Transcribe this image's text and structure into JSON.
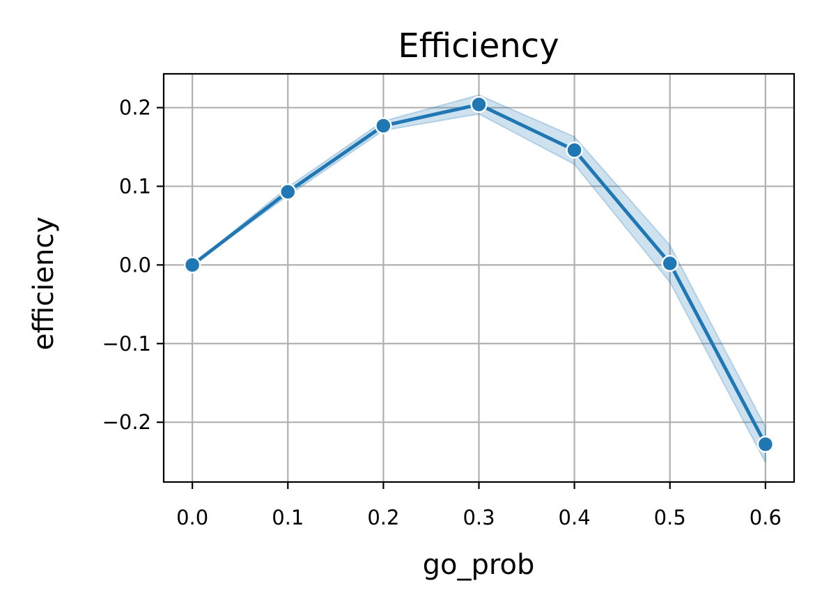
{
  "chart_data": {
    "type": "line",
    "title": "Efficiency",
    "xlabel": "go_prob",
    "ylabel": "efficiency",
    "xlim": [
      -0.03,
      0.63
    ],
    "ylim": [
      -0.276,
      0.243
    ],
    "x_ticks": [
      0.0,
      0.1,
      0.2,
      0.3,
      0.4,
      0.5,
      0.6
    ],
    "x_tick_labels": [
      "0.0",
      "0.1",
      "0.2",
      "0.3",
      "0.4",
      "0.5",
      "0.6"
    ],
    "y_ticks": [
      0.2,
      0.1,
      0.0,
      -0.1,
      -0.2
    ],
    "y_tick_labels": [
      "0.2",
      "0.1",
      "0.0",
      "−0.1",
      "−0.2"
    ],
    "grid": true,
    "series": [
      {
        "color": "#1f77b4",
        "band_color": "#1f77b4",
        "marker": "circle",
        "x": [
          0.0,
          0.1,
          0.2,
          0.3,
          0.4,
          0.5,
          0.6
        ],
        "y": [
          0.0,
          0.093,
          0.177,
          0.204,
          0.146,
          0.002,
          -0.228
        ],
        "ci_low": [
          0.0,
          0.088,
          0.171,
          0.192,
          0.128,
          -0.022,
          -0.251
        ],
        "ci_high": [
          0.0,
          0.099,
          0.183,
          0.216,
          0.163,
          0.025,
          -0.206
        ]
      }
    ]
  }
}
